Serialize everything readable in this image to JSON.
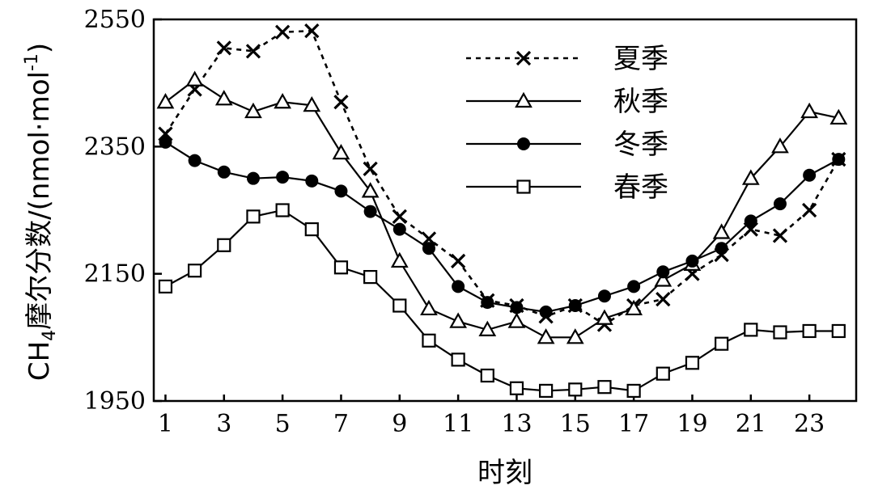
{
  "chart_data": {
    "type": "line",
    "title": "",
    "xlabel": "时刻",
    "ylabel": {
      "prefix": "CH",
      "sub": "4",
      "middle": "摩尔分数/(nmol·mol",
      "sup": "-1",
      "suffix": ")"
    },
    "xlim": [
      0.6,
      24.6
    ],
    "ylim": [
      1950,
      2550
    ],
    "x_ticks": [
      "1",
      "3",
      "5",
      "7",
      "9",
      "11",
      "13",
      "15",
      "17",
      "19",
      "21",
      "23"
    ],
    "y_ticks": [
      "1950",
      "2150",
      "2350",
      "2550"
    ],
    "grid": false,
    "legend_position": "top-right",
    "x": [
      1,
      2,
      3,
      4,
      5,
      6,
      7,
      8,
      9,
      10,
      11,
      12,
      13,
      14,
      15,
      16,
      17,
      18,
      19,
      20,
      21,
      22,
      23,
      24
    ],
    "series": [
      {
        "name": "夏季",
        "marker": "x",
        "line": "dotted",
        "values": [
          2370,
          2440,
          2505,
          2500,
          2530,
          2532,
          2420,
          2315,
          2240,
          2205,
          2170,
          2108,
          2100,
          2083,
          2100,
          2070,
          2100,
          2110,
          2150,
          2180,
          2220,
          2210,
          2250,
          2330
        ]
      },
      {
        "name": "秋季",
        "marker": "triangle",
        "line": "solid",
        "values": [
          2420,
          2455,
          2425,
          2405,
          2420,
          2415,
          2340,
          2280,
          2170,
          2095,
          2075,
          2062,
          2075,
          2050,
          2050,
          2080,
          2095,
          2140,
          2165,
          2215,
          2300,
          2350,
          2405,
          2395
        ]
      },
      {
        "name": "冬季",
        "marker": "circle",
        "line": "solid",
        "values": [
          2357,
          2328,
          2310,
          2300,
          2302,
          2296,
          2280,
          2248,
          2220,
          2190,
          2130,
          2105,
          2097,
          2090,
          2100,
          2115,
          2130,
          2153,
          2170,
          2190,
          2233,
          2260,
          2305,
          2330
        ]
      },
      {
        "name": "春季",
        "marker": "square",
        "line": "solid",
        "values": [
          2130,
          2155,
          2195,
          2240,
          2250,
          2220,
          2160,
          2145,
          2100,
          2045,
          2015,
          1990,
          1970,
          1966,
          1968,
          1972,
          1966,
          1993,
          2010,
          2040,
          2062,
          2058,
          2060,
          2060
        ]
      }
    ]
  }
}
